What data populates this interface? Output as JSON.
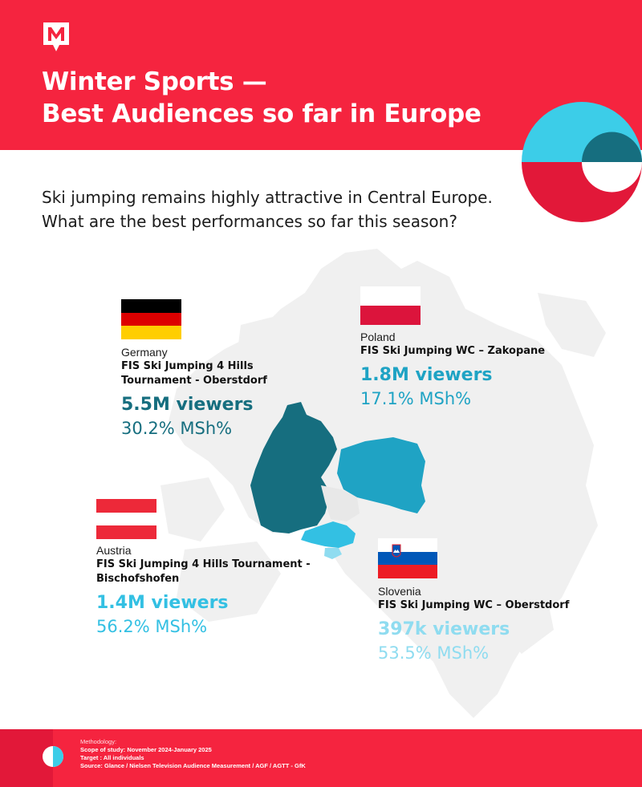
{
  "header": {
    "title_line1": "Winter Sports —",
    "title_line2": "Best Audiences so far in Europe",
    "accent_color": "#f5243f"
  },
  "intro": {
    "line1": "Ski jumping remains highly attractive in Central Europe.",
    "line2": "What are the best performances so far this season?"
  },
  "entries": {
    "germany": {
      "country": "Germany",
      "event_line1": "FIS Ski Jumping 4 Hills",
      "event_line2": "Tournament - Oberstdorf",
      "viewers": "5.5M viewers",
      "msh": "30.2% MSh%",
      "color": "#166e7f"
    },
    "poland": {
      "country": "Poland",
      "event_line1": "FIS Ski Jumping WC – Zakopane",
      "viewers": "1.8M viewers",
      "msh": "17.1% MSh%",
      "color": "#1fa3c4"
    },
    "austria": {
      "country": "Austria",
      "event_line1": "FIS Ski Jumping 4 Hills Tournament -",
      "event_line2": "Bischofshofen",
      "viewers": "1.4M viewers",
      "msh": "56.2% MSh%",
      "color": "#33c0e3"
    },
    "slovenia": {
      "country": "Slovenia",
      "event_line1": "FIS Ski Jumping WC – Oberstdorf",
      "viewers": "397k viewers",
      "msh": "53.5% MSh%",
      "color": "#8fdcf0"
    }
  },
  "footer": {
    "methodology": "Methodology:",
    "scope": "Scope of study: November 2024-January 2025",
    "target": "Target : All individuals",
    "source": "Source: Glance / Nielsen Television Audience Measurement / AGF / AGTT - GfK"
  }
}
